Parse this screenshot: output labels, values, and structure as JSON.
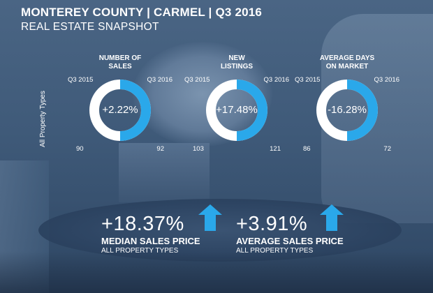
{
  "header": {
    "title": "MONTEREY COUNTY | CARMEL | Q3 2016",
    "subtitle": "REAL ESTATE SNAPSHOT"
  },
  "side_label": "All Property Types",
  "metrics": [
    {
      "heading_line1": "NUMBER OF",
      "heading_line2": "SALES",
      "prev_period": "Q3 2015",
      "curr_period": "Q3 2016",
      "change": "+2.22%",
      "prev_value": "90",
      "curr_value": "92"
    },
    {
      "heading_line1": "NEW",
      "heading_line2": "LISTINGS",
      "prev_period": "Q3 2015",
      "curr_period": "Q3 2016",
      "change": "+17.48%",
      "prev_value": "103",
      "curr_value": "121"
    },
    {
      "heading_line1": "AVERAGE DAYS",
      "heading_line2": "ON MARKET",
      "prev_period": "Q3 2015",
      "curr_period": "Q3 2016",
      "change": "-16.28%",
      "prev_value": "86",
      "curr_value": "72"
    }
  ],
  "highlights": [
    {
      "change": "+18.37%",
      "label": "MEDIAN SALES PRICE",
      "sub": "ALL PROPERTY TYPES"
    },
    {
      "change": "+3.91%",
      "label": "AVERAGE SALES PRICE",
      "sub": "ALL PROPERTY TYPES"
    }
  ],
  "colors": {
    "accent": "#2aa8ea",
    "ring": "#ffffff"
  }
}
